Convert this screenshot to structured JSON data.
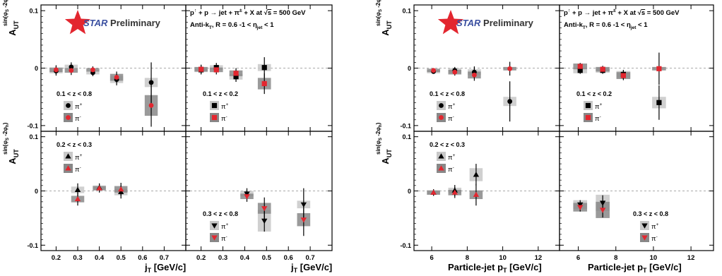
{
  "branding": {
    "logo_text": "STAR",
    "status": "Preliminary",
    "reaction_line": "p↑ + p → jet + π± + X at √s = 500 GeV",
    "reaction_parts": [
      "p",
      "↑",
      " + p → jet + π",
      "±",
      " + X at √",
      "s",
      " = 500 GeV"
    ],
    "algo_parts": [
      "Anti-k",
      "T",
      ", R = 0.6    -1 < η",
      "jet",
      " < 1"
    ],
    "ylabel_main": "A",
    "ylabel_sub": "UT",
    "ylabel_sup": "sin(φS -2φh)",
    "legend_plus": "π+",
    "legend_minus": "π-"
  },
  "colors": {
    "pi_plus": "#000000",
    "pi_minus": "#e3262f",
    "syst_light": "#c8c8c8",
    "syst_dark": "#888888",
    "zero_line": "#aaaaaa",
    "star_red": "#e3262f",
    "star_blue": "#3a4fa0"
  },
  "chart_data": [
    {
      "id": "jT-z0.1-0.8",
      "type": "scatter",
      "panel": "left-top-left",
      "z_label": "0.1 < z < 0.8",
      "marker_plus": "circle",
      "xlim": [
        0.13,
        0.8
      ],
      "ylim": [
        -0.11,
        0.11
      ],
      "xticks": [
        0.2,
        0.3,
        0.4,
        0.5,
        0.6,
        0.7
      ],
      "yticks": [
        -0.1,
        0,
        0.1
      ],
      "series": [
        {
          "name": "π+",
          "x": [
            0.2,
            0.27,
            0.37,
            0.48,
            0.64
          ],
          "y": [
            -0.005,
            0.002,
            -0.008,
            -0.02,
            -0.025
          ],
          "err": [
            0.008,
            0.008,
            0.006,
            0.01,
            0.035
          ],
          "syst": [
            0.004,
            0.004,
            0.003,
            0.006,
            0.008
          ]
        },
        {
          "name": "π-",
          "x": [
            0.2,
            0.27,
            0.37,
            0.48,
            0.64
          ],
          "y": [
            -0.003,
            -0.004,
            -0.003,
            -0.016,
            -0.065
          ],
          "err": [
            0.008,
            0.008,
            0.006,
            0.01,
            0.037
          ],
          "syst": [
            0.004,
            0.004,
            0.003,
            0.006,
            0.018
          ]
        }
      ]
    },
    {
      "id": "jT-z0.1-0.2",
      "type": "scatter",
      "panel": "left-top-right",
      "z_label": "0.1 < z < 0.2",
      "marker_plus": "square",
      "xlim": [
        0.13,
        0.8
      ],
      "ylim": [
        -0.11,
        0.11
      ],
      "xticks": [
        0.2,
        0.3,
        0.4,
        0.5,
        0.6,
        0.7
      ],
      "yticks": [
        -0.1,
        0,
        0.1
      ],
      "series": [
        {
          "name": "π+",
          "x": [
            0.2,
            0.27,
            0.36,
            0.49
          ],
          "y": [
            -0.003,
            0.001,
            -0.015,
            0.001
          ],
          "err": [
            0.008,
            0.008,
            0.009,
            0.018
          ],
          "syst": [
            0.004,
            0.004,
            0.005,
            0.006
          ]
        },
        {
          "name": "π-",
          "x": [
            0.2,
            0.27,
            0.36,
            0.49
          ],
          "y": [
            -0.002,
            -0.003,
            -0.009,
            -0.027
          ],
          "err": [
            0.008,
            0.008,
            0.009,
            0.018
          ],
          "syst": [
            0.004,
            0.004,
            0.005,
            0.01
          ]
        }
      ]
    },
    {
      "id": "jT-z0.2-0.3",
      "type": "scatter",
      "panel": "left-bottom-left",
      "z_label": "0.2 < z < 0.3",
      "marker_plus": "triangle-up",
      "xlim": [
        0.13,
        0.8
      ],
      "ylim": [
        -0.11,
        0.11
      ],
      "xticks": [
        0.2,
        0.3,
        0.4,
        0.5,
        0.6,
        0.7
      ],
      "yticks": [
        -0.1,
        0,
        0.1
      ],
      "series": [
        {
          "name": "π+",
          "x": [
            0.3,
            0.4,
            0.5
          ],
          "y": [
            0.002,
            0.006,
            -0.002
          ],
          "err": [
            0.012,
            0.008,
            0.012
          ],
          "syst": [
            0.006,
            0.004,
            0.006
          ]
        },
        {
          "name": "π-",
          "x": [
            0.3,
            0.4,
            0.5
          ],
          "y": [
            -0.015,
            0.005,
            0.003
          ],
          "err": [
            0.012,
            0.008,
            0.012
          ],
          "syst": [
            0.006,
            0.004,
            0.006
          ]
        }
      ]
    },
    {
      "id": "jT-z0.3-0.8",
      "type": "scatter",
      "panel": "left-bottom-right",
      "z_label": "0.3 < z < 0.8",
      "marker_plus": "triangle-down",
      "xlim": [
        0.13,
        0.8
      ],
      "ylim": [
        -0.11,
        0.11
      ],
      "xticks": [
        0.2,
        0.3,
        0.4,
        0.5,
        0.6,
        0.7
      ],
      "yticks": [
        -0.1,
        0,
        0.1
      ],
      "series": [
        {
          "name": "π+",
          "x": [
            0.41,
            0.49,
            0.67
          ],
          "y": [
            -0.005,
            -0.055,
            -0.025
          ],
          "err": [
            0.01,
            0.02,
            0.03
          ],
          "syst": [
            0.005,
            0.02,
            0.007
          ]
        },
        {
          "name": "π-",
          "x": [
            0.41,
            0.49,
            0.67
          ],
          "y": [
            -0.01,
            -0.032,
            -0.053
          ],
          "err": [
            0.01,
            0.02,
            0.03
          ],
          "syst": [
            0.005,
            0.01,
            0.012
          ]
        }
      ]
    },
    {
      "id": "pT-z0.1-0.8",
      "type": "scatter",
      "panel": "right-top-left",
      "z_label": "0.1 < z < 0.8",
      "marker_plus": "circle",
      "xlim": [
        5,
        13.2
      ],
      "ylim": [
        -0.11,
        0.11
      ],
      "xticks": [
        6,
        8,
        10,
        12
      ],
      "yticks": [
        -0.1,
        0,
        0.1
      ],
      "series": [
        {
          "name": "π+",
          "x": [
            6.1,
            7.3,
            8.4,
            10.4
          ],
          "y": [
            -0.006,
            -0.004,
            -0.007,
            -0.058
          ],
          "err": [
            0.003,
            0.006,
            0.01,
            0.035
          ],
          "syst": [
            0.003,
            0.004,
            0.005,
            0.008
          ]
        },
        {
          "name": "π-",
          "x": [
            6.1,
            7.3,
            8.4,
            10.4
          ],
          "y": [
            -0.004,
            -0.007,
            -0.012,
            -0.001
          ],
          "err": [
            0.003,
            0.006,
            0.01,
            0.012
          ],
          "syst": [
            0.003,
            0.004,
            0.006,
            0.003
          ]
        }
      ]
    },
    {
      "id": "pT-z0.1-0.2",
      "type": "scatter",
      "panel": "right-top-right",
      "z_label": "0.1 < z < 0.2",
      "marker_plus": "square",
      "xlim": [
        5,
        13.2
      ],
      "ylim": [
        -0.11,
        0.11
      ],
      "xticks": [
        6,
        8,
        10,
        12
      ],
      "yticks": [
        -0.1,
        0,
        0.1
      ],
      "series": [
        {
          "name": "π+",
          "x": [
            6.1,
            7.3,
            8.4,
            10.3
          ],
          "y": [
            -0.004,
            -0.004,
            -0.011,
            -0.06
          ],
          "err": [
            0.006,
            0.006,
            0.008,
            0.03
          ],
          "syst": [
            0.005,
            0.004,
            0.006,
            0.01
          ]
        },
        {
          "name": "π-",
          "x": [
            6.1,
            7.3,
            8.4,
            10.3
          ],
          "y": [
            0.003,
            -0.002,
            -0.013,
            -0.001
          ],
          "err": [
            0.006,
            0.006,
            0.008,
            0.028
          ],
          "syst": [
            0.005,
            0.004,
            0.006,
            0.003
          ]
        }
      ]
    },
    {
      "id": "pT-z0.2-0.3",
      "type": "scatter",
      "panel": "right-bottom-left",
      "z_label": "0.2 < z < 0.3",
      "marker_plus": "triangle-up",
      "xlim": [
        5,
        13.2
      ],
      "ylim": [
        -0.11,
        0.11
      ],
      "xticks": [
        6,
        8,
        10,
        12
      ],
      "yticks": [
        -0.1,
        0,
        0.1
      ],
      "series": [
        {
          "name": "π+",
          "x": [
            6.1,
            7.3,
            8.5
          ],
          "y": [
            -0.003,
            0.001,
            0.03
          ],
          "err": [
            0.006,
            0.01,
            0.02
          ],
          "syst": [
            0.004,
            0.005,
            0.012
          ]
        },
        {
          "name": "π-",
          "x": [
            6.1,
            7.3,
            8.5
          ],
          "y": [
            -0.003,
            -0.003,
            -0.007
          ],
          "err": [
            0.006,
            0.01,
            0.02
          ],
          "syst": [
            0.004,
            0.005,
            0.008
          ]
        }
      ]
    },
    {
      "id": "pT-z0.3-0.8",
      "type": "scatter",
      "panel": "right-bottom-right",
      "z_label": "0.3 < z < 0.8",
      "marker_plus": "triangle-down",
      "xlim": [
        5,
        13.2
      ],
      "ylim": [
        -0.11,
        0.11
      ],
      "xticks": [
        6,
        8,
        10,
        12
      ],
      "yticks": [
        -0.1,
        0,
        0.1
      ],
      "series": [
        {
          "name": "π+",
          "x": [
            6.1,
            7.3
          ],
          "y": [
            -0.025,
            -0.022
          ],
          "err": [
            0.008,
            0.014
          ],
          "syst": [
            0.008,
            0.015
          ]
        },
        {
          "name": "π-",
          "x": [
            6.1,
            7.3
          ],
          "y": [
            -0.03,
            -0.035
          ],
          "err": [
            0.008,
            0.014
          ],
          "syst": [
            0.008,
            0.015
          ]
        }
      ]
    }
  ],
  "axes": {
    "x_tick_labels_jT": [
      "0.2",
      "0.3",
      "0.4",
      "0.5",
      "0.6",
      "0.7"
    ],
    "x_tick_labels_pT": [
      "6",
      "8",
      "10",
      "12"
    ],
    "y_tick_labels": [
      "-0.1",
      "0",
      "0.1"
    ],
    "xlabel_jT_main": "j",
    "xlabel_jT_sub": "T",
    "xlabel_jT_unit": " [GeV/c]",
    "xlabel_pT_main": "Particle-jet p",
    "xlabel_pT_sub": "T",
    "xlabel_pT_unit": " [GeV/c]"
  }
}
